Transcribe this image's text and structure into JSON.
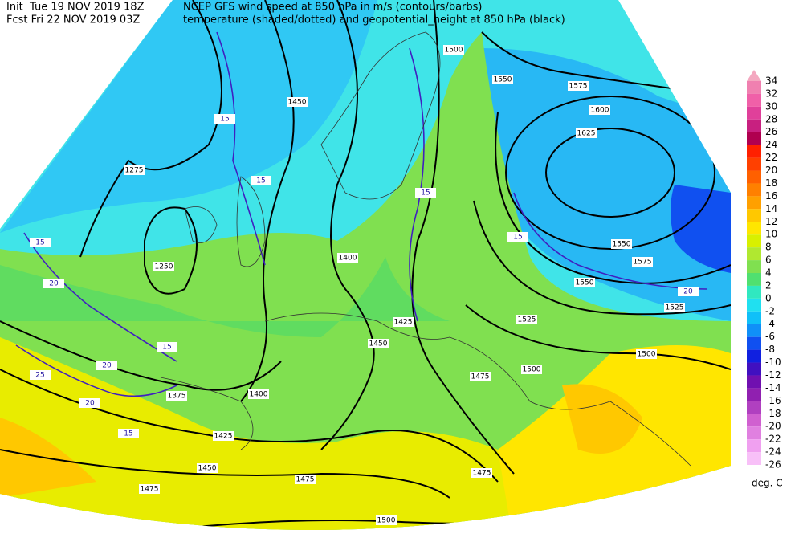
{
  "header": {
    "init": "Init  Tue 19 NOV 2019 18Z",
    "fcst": "Fcst Fri 22 NOV 2019 03Z",
    "title1": "NCEP GFS wind speed at 850 hPa in m/s (contours/barbs)",
    "title2": "temperature (shaded/dotted) and geopotential_height at 850 hPa (black)"
  },
  "colorbar": {
    "labels": [
      34,
      32,
      30,
      28,
      26,
      24,
      22,
      20,
      18,
      16,
      14,
      12,
      10,
      8,
      6,
      4,
      2,
      0,
      -2,
      -4,
      -6,
      -8,
      -10,
      -12,
      -14,
      -16,
      -18,
      -20,
      -22,
      -24,
      -26
    ],
    "colors": [
      "#f4a8c0",
      "#f080b0",
      "#f060a8",
      "#e0409a",
      "#c82080",
      "#b00050",
      "#ff2000",
      "#ff4000",
      "#ff6000",
      "#ff8000",
      "#ffa000",
      "#ffc800",
      "#ffe600",
      "#d8f000",
      "#b0e830",
      "#80e050",
      "#50e070",
      "#30e8c0",
      "#20e0f0",
      "#10c0f8",
      "#1090f8",
      "#1050f0",
      "#1020e0",
      "#4010c0",
      "#7010b0",
      "#9020b0",
      "#b040c0",
      "#d060d0",
      "#e080e0",
      "#f0a0f0",
      "#f8c0f8"
    ],
    "units": "deg. C"
  },
  "height_labels": [
    "1450",
    "1275",
    "1250",
    "1400",
    "1425",
    "1450",
    "1375",
    "1400",
    "1425",
    "1450",
    "1475",
    "1475",
    "1500",
    "1475",
    "1475",
    "1500",
    "1525",
    "1550",
    "1575",
    "1600",
    "1625",
    "1500",
    "1575",
    "1550",
    "1525",
    "1500",
    "1550"
  ],
  "wind_labels": [
    "15",
    "15",
    "15",
    "20",
    "25",
    "20",
    "20",
    "15",
    "15",
    "15",
    "15",
    "20"
  ]
}
